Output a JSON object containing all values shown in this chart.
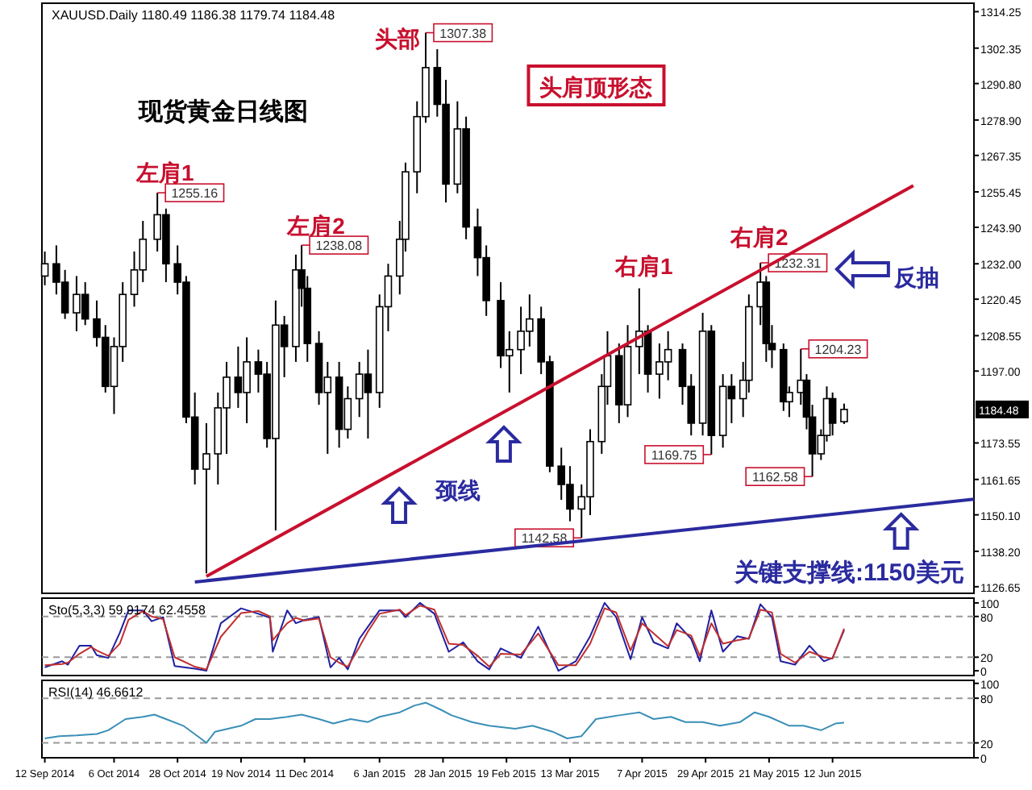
{
  "chart_data": [
    {
      "type": "candlestick",
      "title": "现货黄金日线图",
      "subtitle": "XAUUSD.Daily  1180.49 1186.38 1179.74 1184.48",
      "x": [
        "2014-09-12",
        "2014-09-16",
        "2014-09-19",
        "2014-09-23",
        "2014-09-26",
        "2014-09-30",
        "2014-10-03",
        "2014-10-06",
        "2014-10-09",
        "2014-10-13",
        "2014-10-16",
        "2014-10-21",
        "2014-10-24",
        "2014-10-28",
        "2014-10-31",
        "2014-11-03",
        "2014-11-07",
        "2014-11-11",
        "2014-11-14",
        "2014-11-18",
        "2014-11-21",
        "2014-11-25",
        "2014-11-28",
        "2014-12-01",
        "2014-12-04",
        "2014-12-08",
        "2014-12-10",
        "2014-12-12",
        "2014-12-16",
        "2014-12-19",
        "2014-12-23",
        "2014-12-26",
        "2014-12-30",
        "2015-01-02",
        "2015-01-06",
        "2015-01-09",
        "2015-01-13",
        "2015-01-15",
        "2015-01-19",
        "2015-01-22",
        "2015-01-26",
        "2015-01-29",
        "2015-02-02",
        "2015-02-05",
        "2015-02-09",
        "2015-02-12",
        "2015-02-17",
        "2015-02-20",
        "2015-02-24",
        "2015-02-27",
        "2015-03-03",
        "2015-03-06",
        "2015-03-10",
        "2015-03-13",
        "2015-03-17",
        "2015-03-20",
        "2015-03-24",
        "2015-03-26",
        "2015-03-30",
        "2015-04-02",
        "2015-04-06",
        "2015-04-09",
        "2015-04-13",
        "2015-04-16",
        "2015-04-21",
        "2015-04-24",
        "2015-04-28",
        "2015-05-01",
        "2015-05-05",
        "2015-05-08",
        "2015-05-12",
        "2015-05-14",
        "2015-05-18",
        "2015-05-20",
        "2015-05-22",
        "2015-05-26",
        "2015-05-28",
        "2015-06-01",
        "2015-06-03",
        "2015-06-05",
        "2015-06-08",
        "2015-06-10",
        "2015-06-12",
        "2015-06-16"
      ],
      "ohlc": [
        [
          1228,
          1236,
          1225,
          1232
        ],
        [
          1232,
          1238,
          1222,
          1226
        ],
        [
          1226,
          1230,
          1214,
          1216
        ],
        [
          1216,
          1228,
          1210,
          1222
        ],
        [
          1222,
          1226,
          1212,
          1214
        ],
        [
          1214,
          1220,
          1205,
          1208
        ],
        [
          1208,
          1212,
          1190,
          1192
        ],
        [
          1192,
          1208,
          1183,
          1205
        ],
        [
          1205,
          1226,
          1200,
          1222
        ],
        [
          1222,
          1236,
          1218,
          1230
        ],
        [
          1230,
          1246,
          1226,
          1240
        ],
        [
          1240,
          1255.16,
          1236,
          1248
        ],
        [
          1248,
          1250,
          1226,
          1232
        ],
        [
          1232,
          1238,
          1222,
          1226
        ],
        [
          1226,
          1228,
          1180,
          1182
        ],
        [
          1182,
          1190,
          1160,
          1165
        ],
        [
          1165,
          1180,
          1131,
          1170
        ],
        [
          1170,
          1190,
          1160,
          1185
        ],
        [
          1185,
          1200,
          1170,
          1195
        ],
        [
          1195,
          1205,
          1185,
          1190
        ],
        [
          1190,
          1208,
          1180,
          1200
        ],
        [
          1200,
          1204,
          1190,
          1196
        ],
        [
          1196,
          1200,
          1172,
          1175
        ],
        [
          1175,
          1220,
          1145,
          1212
        ],
        [
          1212,
          1215,
          1195,
          1205
        ],
        [
          1205,
          1235,
          1200,
          1230
        ],
        [
          1230,
          1238.08,
          1218,
          1224
        ],
        [
          1224,
          1228,
          1200,
          1206
        ],
        [
          1206,
          1210,
          1186,
          1190
        ],
        [
          1190,
          1200,
          1170,
          1195
        ],
        [
          1195,
          1200,
          1172,
          1178
        ],
        [
          1178,
          1192,
          1175,
          1188
        ],
        [
          1188,
          1200,
          1182,
          1196
        ],
        [
          1196,
          1204,
          1175,
          1190
        ],
        [
          1190,
          1222,
          1185,
          1218
        ],
        [
          1218,
          1232,
          1210,
          1228
        ],
        [
          1228,
          1246,
          1222,
          1240
        ],
        [
          1240,
          1265,
          1236,
          1262
        ],
        [
          1262,
          1285,
          1255,
          1280
        ],
        [
          1280,
          1307.38,
          1278,
          1296
        ],
        [
          1296,
          1302,
          1280,
          1284
        ],
        [
          1284,
          1292,
          1252,
          1258
        ],
        [
          1258,
          1285,
          1255,
          1276
        ],
        [
          1276,
          1280,
          1240,
          1244
        ],
        [
          1244,
          1250,
          1228,
          1234
        ],
        [
          1234,
          1238,
          1215,
          1220
        ],
        [
          1220,
          1226,
          1198,
          1202
        ],
        [
          1202,
          1210,
          1190,
          1204
        ],
        [
          1204,
          1218,
          1196,
          1210
        ],
        [
          1210,
          1222,
          1205,
          1214
        ],
        [
          1214,
          1218,
          1196,
          1200
        ],
        [
          1200,
          1202,
          1164,
          1166
        ],
        [
          1166,
          1172,
          1155,
          1160
        ],
        [
          1160,
          1166,
          1148,
          1152
        ],
        [
          1152,
          1160,
          1142.58,
          1156
        ],
        [
          1156,
          1178,
          1150,
          1174
        ],
        [
          1174,
          1196,
          1170,
          1192
        ],
        [
          1192,
          1210,
          1186,
          1202
        ],
        [
          1202,
          1206,
          1180,
          1186
        ],
        [
          1186,
          1212,
          1182,
          1205
        ],
        [
          1205,
          1224,
          1196,
          1210
        ],
        [
          1210,
          1212,
          1190,
          1196
        ],
        [
          1196,
          1206,
          1188,
          1200
        ],
        [
          1200,
          1210,
          1194,
          1204
        ],
        [
          1204,
          1206,
          1186,
          1192
        ],
        [
          1192,
          1196,
          1176,
          1180
        ],
        [
          1180,
          1216,
          1176,
          1210
        ],
        [
          1210,
          1212,
          1169.75,
          1176
        ],
        [
          1176,
          1196,
          1172,
          1192
        ],
        [
          1192,
          1196,
          1180,
          1188
        ],
        [
          1188,
          1200,
          1182,
          1194
        ],
        [
          1194,
          1222,
          1190,
          1218
        ],
        [
          1218,
          1232.31,
          1212,
          1226
        ],
        [
          1226,
          1228,
          1200,
          1206
        ],
        [
          1206,
          1212,
          1198,
          1204
        ],
        [
          1204,
          1206,
          1184,
          1187
        ],
        [
          1187,
          1192,
          1182,
          1190
        ],
        [
          1190,
          1204.23,
          1186,
          1194
        ],
        [
          1194,
          1196,
          1178,
          1182
        ],
        [
          1182,
          1186,
          1162.58,
          1170
        ],
        [
          1170,
          1178,
          1168,
          1176
        ],
        [
          1176,
          1192,
          1174,
          1188
        ],
        [
          1188,
          1190,
          1176,
          1180
        ],
        [
          1180.49,
          1186.38,
          1179.74,
          1184.48
        ]
      ],
      "value_labels": [
        null,
        null,
        null,
        null,
        null,
        null,
        null,
        null,
        null,
        null,
        null,
        "1255.16",
        null,
        null,
        null,
        null,
        null,
        null,
        null,
        null,
        null,
        null,
        null,
        null,
        null,
        null,
        "1238.08",
        null,
        null,
        null,
        null,
        null,
        null,
        null,
        null,
        null,
        null,
        null,
        null,
        "1307.38",
        null,
        null,
        null,
        null,
        null,
        null,
        null,
        null,
        null,
        null,
        null,
        null,
        null,
        null,
        "1142.58",
        null,
        null,
        null,
        null,
        null,
        null,
        null,
        null,
        null,
        null,
        null,
        null,
        "1169.75",
        null,
        null,
        null,
        null,
        "1232.31",
        null,
        null,
        null,
        null,
        "1204.23",
        null,
        "1162.58",
        null,
        null,
        null,
        null
      ],
      "series": [
        {
          "type": "line",
          "color": "#c8102e",
          "x": [
            "2014-11-07",
            "2015-07-10"
          ],
          "values": [
            1130,
            1257.5
          ]
        },
        {
          "type": "line",
          "name": "关键支撑线:1150美元",
          "color": "#2b2ba0",
          "x": [
            "2014-11-03",
            "2015-07-31"
          ],
          "values": [
            1128.2,
            1155.2
          ]
        }
      ],
      "xlim": [
        "2014-09-11",
        "2015-07-31"
      ],
      "ylim": [
        1124.5,
        1317
      ],
      "yticks": [
        1314.25,
        1302.35,
        {
          "value": 1290.8,
          "label": "1290.80"
        },
        {
          "value": 1278.9,
          "label": "1278.90"
        },
        1267.35,
        1255.45,
        {
          "value": 1243.9,
          "label": "1243.90"
        },
        {
          "value": 1232,
          "label": "1232.00"
        },
        1220.45,
        1208.55,
        {
          "value": 1197,
          "label": "1197.00"
        },
        1173.55,
        1161.65,
        {
          "value": 1150.1,
          "label": "1150.10"
        },
        {
          "value": 1138.2,
          "label": "1138.20"
        },
        1126.65
      ],
      "tick_labels": "y",
      "annotations": [
        "头肩顶形态",
        "左肩1",
        "左肩2",
        "头部",
        "右肩1",
        "右肩2",
        "颈线",
        "反抽",
        "1184.48"
      ]
    },
    {
      "type": "line",
      "title": "Sto(5,3,3) 59.9174 62.4558",
      "x": [
        "2014-09-12",
        "2014-09-18",
        "2014-09-20",
        "2014-09-24",
        "2014-09-28",
        "2014-09-30",
        "2014-10-04",
        "2014-10-08",
        "2014-10-11",
        "2014-10-16",
        "2014-10-19",
        "2014-10-23",
        "2014-10-27",
        "2014-11-03",
        "2014-11-07",
        "2014-11-12",
        "2014-11-19",
        "2014-11-25",
        "2014-11-29",
        "2014-11-30",
        "2014-12-05",
        "2014-12-08",
        "2014-12-11",
        "2014-12-16",
        "2014-12-20",
        "2014-12-23",
        "2014-12-26",
        "2014-12-30",
        "2015-01-02",
        "2015-01-06",
        "2015-01-13",
        "2015-01-15",
        "2015-01-20",
        "2015-01-25",
        "2015-01-30",
        "2015-02-04",
        "2015-02-09",
        "2015-02-13",
        "2015-02-17",
        "2015-02-24",
        "2015-03-02",
        "2015-03-09",
        "2015-03-15",
        "2015-03-20",
        "2015-03-25",
        "2015-03-29",
        "2015-04-03",
        "2015-04-07",
        "2015-04-11",
        "2015-04-16",
        "2015-04-19",
        "2015-04-24",
        "2015-04-27",
        "2015-05-01",
        "2015-05-05",
        "2015-05-10",
        "2015-05-14",
        "2015-05-18",
        "2015-05-22",
        "2015-05-25",
        "2015-05-30",
        "2015-06-04",
        "2015-06-09",
        "2015-06-12",
        "2015-06-16"
      ],
      "series": [
        {
          "color": "#2020a0",
          "values": [
            5,
            14,
            9,
            37,
            37,
            23,
            19,
            56,
            89,
            89,
            73,
            79,
            7,
            3,
            0,
            70,
            92,
            84,
            78,
            28,
            89,
            70,
            75,
            79,
            5,
            19,
            2,
            47,
            65,
            89,
            89,
            79,
            100,
            84,
            28,
            42,
            14,
            2,
            33,
            19,
            65,
            0,
            14,
            51,
            100,
            79,
            17,
            79,
            42,
            33,
            70,
            47,
            14,
            89,
            28,
            51,
            47,
            98,
            79,
            14,
            9,
            37,
            14,
            19,
            60
          ]
        },
        {
          "color": "#c03030",
          "values": [
            8,
            10,
            12,
            25,
            35,
            30,
            22,
            40,
            75,
            88,
            80,
            76,
            20,
            6,
            2,
            50,
            85,
            88,
            80,
            45,
            70,
            78,
            74,
            77,
            20,
            12,
            6,
            35,
            58,
            84,
            90,
            82,
            96,
            90,
            40,
            38,
            22,
            6,
            25,
            24,
            55,
            8,
            8,
            40,
            92,
            86,
            30,
            70,
            55,
            36,
            60,
            52,
            22,
            70,
            40,
            45,
            48,
            90,
            86,
            25,
            12,
            28,
            20,
            18,
            62
          ]
        }
      ],
      "xlim": [
        "2014-09-11",
        "2015-07-31"
      ],
      "ylim": [
        -7,
        107
      ],
      "yticks": [
        0,
        20,
        80,
        100
      ],
      "tick_labels": "y",
      "ref_lines": [
        {
          "axis": "y",
          "value": 20,
          "line_style": "dashed"
        },
        {
          "axis": "y",
          "value": 80,
          "line_style": "dashed"
        }
      ]
    },
    {
      "type": "line",
      "title": "RSI(14) 46.6612",
      "x": [
        "2014-09-12",
        "2014-09-17",
        "2014-09-23",
        "2014-09-30",
        "2014-10-04",
        "2014-10-10",
        "2014-10-16",
        "2014-10-20",
        "2014-10-24",
        "2014-10-30",
        "2014-11-05",
        "2014-11-07",
        "2014-11-10",
        "2014-11-19",
        "2014-11-24",
        "2014-11-29",
        "2014-12-05",
        "2014-12-10",
        "2014-12-16",
        "2014-12-21",
        "2014-12-27",
        "2015-01-02",
        "2015-01-06",
        "2015-01-13",
        "2015-01-18",
        "2015-01-22",
        "2015-01-27",
        "2015-01-31",
        "2015-02-07",
        "2015-02-13",
        "2015-02-22",
        "2015-02-28",
        "2015-03-07",
        "2015-03-12",
        "2015-03-17",
        "2015-03-22",
        "2015-03-30",
        "2015-04-06",
        "2015-04-11",
        "2015-04-17",
        "2015-04-22",
        "2015-04-28",
        "2015-05-04",
        "2015-05-11",
        "2015-05-16",
        "2015-05-21",
        "2015-05-28",
        "2015-06-02",
        "2015-06-08",
        "2015-06-13",
        "2015-06-16"
      ],
      "series": [
        {
          "color": "#3a8fb7",
          "values": [
            26,
            29,
            30,
            32,
            37,
            52,
            55,
            58,
            52,
            43,
            26,
            20,
            35,
            43,
            52,
            52,
            55,
            58,
            52,
            46,
            52,
            48,
            55,
            61,
            70,
            74,
            65,
            57,
            48,
            43,
            39,
            43,
            35,
            26,
            29,
            52,
            57,
            61,
            52,
            55,
            48,
            48,
            43,
            48,
            61,
            55,
            43,
            43,
            37,
            46,
            47
          ]
        }
      ],
      "xlim": [
        "2014-09-11",
        "2015-07-31"
      ],
      "ylim": [
        0,
        104
      ],
      "yticks": [
        0,
        20,
        80,
        100
      ],
      "xticks": [
        {
          "value": "2014-09-12",
          "label": "12 Sep 2014"
        },
        {
          "value": "2014-10-06",
          "label": "6 Oct 2014"
        },
        {
          "value": "2014-10-28",
          "label": "28 Oct 2014"
        },
        {
          "value": "2014-11-19",
          "label": "19 Nov 2014"
        },
        {
          "value": "2014-12-11",
          "label": "11 Dec 2014"
        },
        {
          "value": "2015-01-06",
          "label": "6 Jan 2015"
        },
        {
          "value": "2015-01-28",
          "label": "28 Jan 2015"
        },
        {
          "value": "2015-02-19",
          "label": "19 Feb 2015"
        },
        {
          "value": "2015-03-13",
          "label": "13 Mar 2015"
        },
        {
          "value": "2015-04-07",
          "label": "7 Apr 2015"
        },
        {
          "value": "2015-04-29",
          "label": "29 Apr 2015"
        },
        {
          "value": "2015-05-21",
          "label": "21 May 2015"
        },
        {
          "value": "2015-06-12",
          "label": "12 Jun 2015"
        }
      ],
      "ref_lines": [
        {
          "axis": "y",
          "value": 20,
          "line_style": "dashed"
        },
        {
          "axis": "y",
          "value": 80,
          "line_style": "dashed"
        }
      ]
    }
  ]
}
